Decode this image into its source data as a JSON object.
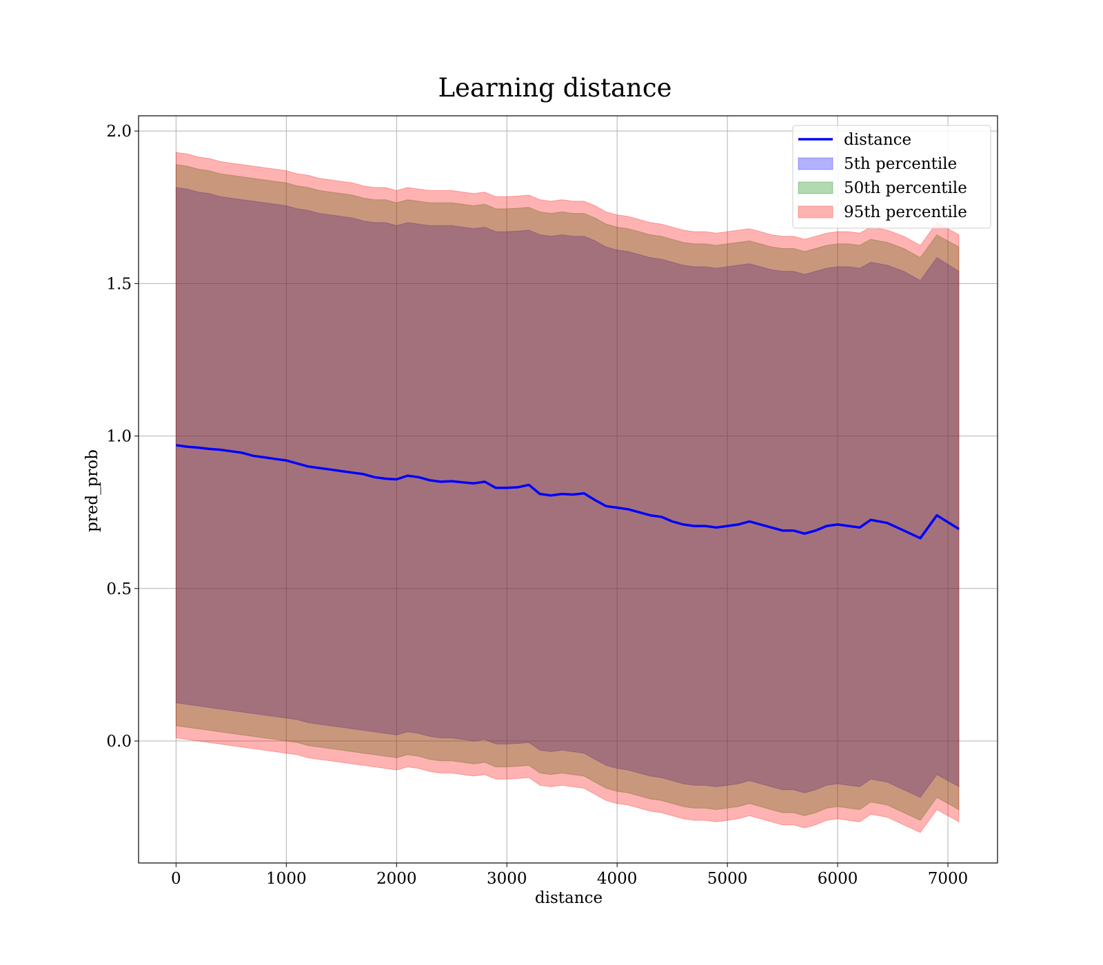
{
  "chart_data": {
    "type": "area",
    "title": "Learning distance",
    "xlabel": "distance",
    "ylabel": "pred_prob",
    "xlim": [
      -340,
      7450
    ],
    "ylim": [
      -0.4,
      2.05
    ],
    "xticks": [
      0,
      1000,
      2000,
      3000,
      4000,
      5000,
      6000,
      7000
    ],
    "yticks": [
      0.0,
      0.5,
      1.0,
      1.5,
      2.0
    ],
    "xtick_labels": [
      "0",
      "1000",
      "2000",
      "3000",
      "4000",
      "5000",
      "6000",
      "7000"
    ],
    "ytick_labels": [
      "0.0",
      "0.5",
      "1.0",
      "1.5",
      "2.0"
    ],
    "grid": true,
    "legend_position": "top-right",
    "x": [
      0,
      100,
      200,
      300,
      400,
      500,
      600,
      700,
      800,
      900,
      1000,
      1100,
      1200,
      1300,
      1400,
      1500,
      1600,
      1700,
      1800,
      1900,
      2000,
      2100,
      2200,
      2300,
      2400,
      2500,
      2600,
      2700,
      2800,
      2900,
      3000,
      3100,
      3200,
      3300,
      3400,
      3500,
      3600,
      3700,
      3800,
      3900,
      4000,
      4100,
      4200,
      4300,
      4400,
      4500,
      4600,
      4700,
      4800,
      4900,
      5000,
      5100,
      5200,
      5300,
      5400,
      5500,
      5600,
      5700,
      5800,
      5900,
      6000,
      6100,
      6200,
      6300,
      6450,
      6600,
      6750,
      6900,
      7100
    ],
    "series": [
      {
        "name": "distance",
        "kind": "line",
        "color": "#0000ff",
        "values": [
          0.97,
          0.965,
          0.962,
          0.958,
          0.955,
          0.95,
          0.945,
          0.935,
          0.93,
          0.925,
          0.92,
          0.91,
          0.9,
          0.895,
          0.89,
          0.885,
          0.88,
          0.875,
          0.865,
          0.86,
          0.858,
          0.87,
          0.865,
          0.855,
          0.85,
          0.852,
          0.848,
          0.845,
          0.85,
          0.83,
          0.83,
          0.832,
          0.84,
          0.81,
          0.805,
          0.81,
          0.808,
          0.812,
          0.79,
          0.77,
          0.765,
          0.76,
          0.75,
          0.74,
          0.735,
          0.72,
          0.71,
          0.705,
          0.705,
          0.7,
          0.705,
          0.71,
          0.72,
          0.71,
          0.7,
          0.69,
          0.69,
          0.68,
          0.69,
          0.705,
          0.71,
          0.705,
          0.7,
          0.725,
          0.715,
          0.69,
          0.665,
          0.74,
          0.695
        ]
      },
      {
        "name": "5th percentile",
        "kind": "band",
        "color": "#0000ff",
        "upper": [
          1.815,
          1.81,
          1.8,
          1.795,
          1.785,
          1.78,
          1.775,
          1.77,
          1.765,
          1.76,
          1.755,
          1.745,
          1.74,
          1.73,
          1.725,
          1.72,
          1.715,
          1.705,
          1.7,
          1.7,
          1.69,
          1.7,
          1.695,
          1.69,
          1.69,
          1.69,
          1.685,
          1.68,
          1.685,
          1.67,
          1.67,
          1.672,
          1.675,
          1.66,
          1.655,
          1.66,
          1.655,
          1.655,
          1.64,
          1.62,
          1.61,
          1.605,
          1.595,
          1.585,
          1.58,
          1.57,
          1.56,
          1.555,
          1.555,
          1.55,
          1.555,
          1.56,
          1.565,
          1.555,
          1.545,
          1.54,
          1.54,
          1.53,
          1.54,
          1.55,
          1.555,
          1.555,
          1.55,
          1.57,
          1.56,
          1.54,
          1.51,
          1.585,
          1.54
        ],
        "lower": [
          0.125,
          0.12,
          0.115,
          0.11,
          0.105,
          0.1,
          0.095,
          0.09,
          0.085,
          0.08,
          0.075,
          0.07,
          0.06,
          0.055,
          0.05,
          0.045,
          0.04,
          0.035,
          0.03,
          0.025,
          0.02,
          0.03,
          0.025,
          0.015,
          0.01,
          0.01,
          0.005,
          0.0,
          0.005,
          -0.01,
          -0.01,
          -0.008,
          -0.005,
          -0.03,
          -0.035,
          -0.03,
          -0.035,
          -0.04,
          -0.06,
          -0.08,
          -0.09,
          -0.095,
          -0.105,
          -0.115,
          -0.12,
          -0.13,
          -0.14,
          -0.145,
          -0.145,
          -0.15,
          -0.145,
          -0.14,
          -0.13,
          -0.14,
          -0.15,
          -0.16,
          -0.16,
          -0.17,
          -0.16,
          -0.145,
          -0.14,
          -0.145,
          -0.15,
          -0.125,
          -0.135,
          -0.16,
          -0.185,
          -0.11,
          -0.15
        ]
      },
      {
        "name": "50th percentile",
        "kind": "band",
        "color": "#008000",
        "upper": [
          1.89,
          1.885,
          1.875,
          1.87,
          1.86,
          1.855,
          1.85,
          1.845,
          1.84,
          1.835,
          1.83,
          1.82,
          1.815,
          1.805,
          1.8,
          1.795,
          1.79,
          1.78,
          1.775,
          1.775,
          1.765,
          1.775,
          1.77,
          1.765,
          1.765,
          1.765,
          1.76,
          1.755,
          1.76,
          1.745,
          1.745,
          1.747,
          1.75,
          1.735,
          1.73,
          1.735,
          1.73,
          1.73,
          1.715,
          1.695,
          1.685,
          1.68,
          1.67,
          1.66,
          1.655,
          1.645,
          1.635,
          1.63,
          1.63,
          1.625,
          1.63,
          1.635,
          1.64,
          1.63,
          1.62,
          1.615,
          1.615,
          1.605,
          1.615,
          1.625,
          1.63,
          1.63,
          1.625,
          1.645,
          1.635,
          1.615,
          1.585,
          1.66,
          1.62
        ],
        "lower": [
          0.05,
          0.045,
          0.04,
          0.035,
          0.03,
          0.025,
          0.02,
          0.015,
          0.01,
          0.005,
          0.0,
          -0.005,
          -0.015,
          -0.02,
          -0.025,
          -0.03,
          -0.035,
          -0.04,
          -0.045,
          -0.05,
          -0.055,
          -0.045,
          -0.05,
          -0.06,
          -0.065,
          -0.065,
          -0.07,
          -0.075,
          -0.07,
          -0.085,
          -0.085,
          -0.083,
          -0.08,
          -0.105,
          -0.11,
          -0.105,
          -0.11,
          -0.115,
          -0.135,
          -0.155,
          -0.165,
          -0.17,
          -0.18,
          -0.19,
          -0.195,
          -0.205,
          -0.215,
          -0.22,
          -0.22,
          -0.225,
          -0.22,
          -0.215,
          -0.205,
          -0.215,
          -0.225,
          -0.235,
          -0.235,
          -0.245,
          -0.235,
          -0.22,
          -0.215,
          -0.22,
          -0.225,
          -0.2,
          -0.21,
          -0.235,
          -0.26,
          -0.185,
          -0.225
        ]
      },
      {
        "name": "95th percentile",
        "kind": "band",
        "color": "#ff0000",
        "upper": [
          1.93,
          1.925,
          1.915,
          1.91,
          1.9,
          1.895,
          1.89,
          1.885,
          1.88,
          1.875,
          1.87,
          1.86,
          1.855,
          1.845,
          1.84,
          1.835,
          1.83,
          1.82,
          1.815,
          1.815,
          1.805,
          1.815,
          1.81,
          1.805,
          1.805,
          1.805,
          1.8,
          1.795,
          1.8,
          1.785,
          1.785,
          1.787,
          1.79,
          1.775,
          1.77,
          1.775,
          1.77,
          1.77,
          1.755,
          1.735,
          1.725,
          1.72,
          1.71,
          1.7,
          1.695,
          1.685,
          1.675,
          1.67,
          1.67,
          1.665,
          1.67,
          1.675,
          1.68,
          1.67,
          1.66,
          1.655,
          1.655,
          1.645,
          1.655,
          1.665,
          1.67,
          1.67,
          1.665,
          1.685,
          1.675,
          1.655,
          1.625,
          1.7,
          1.66
        ],
        "lower": [
          0.01,
          0.005,
          0.0,
          -0.005,
          -0.01,
          -0.015,
          -0.02,
          -0.025,
          -0.03,
          -0.035,
          -0.04,
          -0.045,
          -0.055,
          -0.06,
          -0.065,
          -0.07,
          -0.075,
          -0.08,
          -0.085,
          -0.09,
          -0.095,
          -0.085,
          -0.09,
          -0.1,
          -0.105,
          -0.105,
          -0.11,
          -0.115,
          -0.11,
          -0.125,
          -0.125,
          -0.123,
          -0.12,
          -0.145,
          -0.15,
          -0.145,
          -0.15,
          -0.155,
          -0.175,
          -0.195,
          -0.205,
          -0.21,
          -0.22,
          -0.23,
          -0.235,
          -0.245,
          -0.255,
          -0.26,
          -0.26,
          -0.265,
          -0.26,
          -0.255,
          -0.245,
          -0.255,
          -0.265,
          -0.275,
          -0.275,
          -0.285,
          -0.275,
          -0.26,
          -0.255,
          -0.26,
          -0.265,
          -0.24,
          -0.25,
          -0.275,
          -0.3,
          -0.225,
          -0.265
        ]
      }
    ]
  }
}
